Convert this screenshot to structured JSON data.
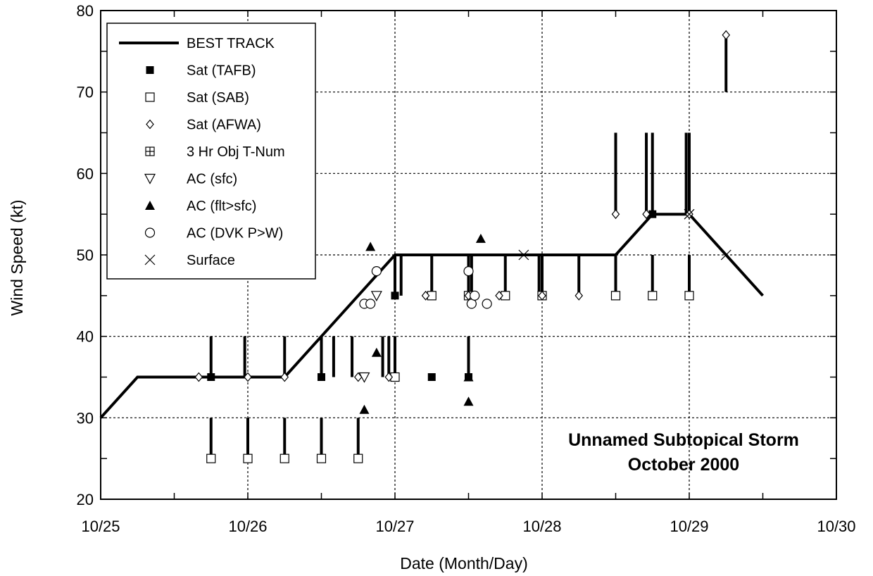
{
  "chart_data": {
    "type": "scatter",
    "xlabel": "Date (Month/Day)",
    "ylabel": "Wind Speed (kt)",
    "xlim": [
      "10/25 00:00",
      "10/30 00:00"
    ],
    "ylim": [
      20,
      80
    ],
    "x_ticks": [
      "10/25",
      "10/26",
      "10/27",
      "10/28",
      "10/29",
      "10/30"
    ],
    "y_ticks": [
      20,
      30,
      40,
      50,
      60,
      70,
      80
    ],
    "grid": true,
    "legend_position": "top-left",
    "annotation": [
      "Unnamed Subtopical Storm",
      "October 2000"
    ],
    "best_track": {
      "name": "BEST TRACK",
      "x": [
        "10/25 00:00",
        "10/25 06:00",
        "10/26 06:00",
        "10/26 12:00",
        "10/27 00:00",
        "10/28 12:00",
        "10/28 18:00",
        "10/29 00:00",
        "10/29 12:00"
      ],
      "y": [
        30,
        35,
        35,
        40,
        50,
        50,
        55,
        55,
        45
      ]
    },
    "error_bars": [
      {
        "x": "10/25 18:00",
        "y1": 35,
        "y2": 40
      },
      {
        "x": "10/25 18:00",
        "y1": 25,
        "y2": 30
      },
      {
        "x": "10/25 23:30",
        "y1": 35,
        "y2": 40
      },
      {
        "x": "10/26 00:00",
        "y1": 25,
        "y2": 30
      },
      {
        "x": "10/26 06:00",
        "y1": 35,
        "y2": 40
      },
      {
        "x": "10/26 06:00",
        "y1": 25,
        "y2": 30
      },
      {
        "x": "10/26 12:00",
        "y1": 35,
        "y2": 40
      },
      {
        "x": "10/26 12:00",
        "y1": 25,
        "y2": 30
      },
      {
        "x": "10/26 14:00",
        "y1": 35,
        "y2": 40
      },
      {
        "x": "10/26 17:00",
        "y1": 35,
        "y2": 40
      },
      {
        "x": "10/26 18:00",
        "y1": 25,
        "y2": 30
      },
      {
        "x": "10/26 22:00",
        "y1": 35,
        "y2": 40
      },
      {
        "x": "10/26 23:00",
        "y1": 35,
        "y2": 40
      },
      {
        "x": "10/27 00:00",
        "y1": 45,
        "y2": 50
      },
      {
        "x": "10/27 00:00",
        "y1": 35,
        "y2": 40
      },
      {
        "x": "10/27 01:00",
        "y1": 45,
        "y2": 50
      },
      {
        "x": "10/27 06:00",
        "y1": 45,
        "y2": 50
      },
      {
        "x": "10/27 12:00",
        "y1": 45,
        "y2": 50
      },
      {
        "x": "10/27 12:00",
        "y1": 35,
        "y2": 40
      },
      {
        "x": "10/27 12:30",
        "y1": 45,
        "y2": 50
      },
      {
        "x": "10/27 18:00",
        "y1": 45,
        "y2": 50
      },
      {
        "x": "10/27 23:30",
        "y1": 45,
        "y2": 50
      },
      {
        "x": "10/28 00:00",
        "y1": 45,
        "y2": 50
      },
      {
        "x": "10/28 06:00",
        "y1": 45,
        "y2": 50
      },
      {
        "x": "10/28 12:00",
        "y1": 55,
        "y2": 65
      },
      {
        "x": "10/28 12:00",
        "y1": 45,
        "y2": 50
      },
      {
        "x": "10/28 17:00",
        "y1": 55,
        "y2": 65
      },
      {
        "x": "10/28 18:00",
        "y1": 55,
        "y2": 65
      },
      {
        "x": "10/28 18:00",
        "y1": 45,
        "y2": 50
      },
      {
        "x": "10/28 23:30",
        "y1": 55,
        "y2": 65
      },
      {
        "x": "10/29 00:00",
        "y1": 55,
        "y2": 65
      },
      {
        "x": "10/29 00:00",
        "y1": 45,
        "y2": 50
      },
      {
        "x": "10/29 06:00",
        "y1": 70,
        "y2": 77
      }
    ],
    "series": [
      {
        "name": "Sat (TAFB)",
        "marker": "filled-square",
        "points": [
          {
            "x": "10/25 18:00",
            "y": 35
          },
          {
            "x": "10/26 12:00",
            "y": 35
          },
          {
            "x": "10/27 00:00",
            "y": 45
          },
          {
            "x": "10/27 06:00",
            "y": 35
          },
          {
            "x": "10/27 12:00",
            "y": 35
          },
          {
            "x": "10/27 18:00",
            "y": 45
          },
          {
            "x": "10/28 12:00",
            "y": 45
          },
          {
            "x": "10/28 18:00",
            "y": 55
          }
        ]
      },
      {
        "name": "Sat (SAB)",
        "marker": "open-square",
        "points": [
          {
            "x": "10/25 18:00",
            "y": 25
          },
          {
            "x": "10/26 00:00",
            "y": 25
          },
          {
            "x": "10/26 06:00",
            "y": 25
          },
          {
            "x": "10/26 12:00",
            "y": 25
          },
          {
            "x": "10/26 18:00",
            "y": 25
          },
          {
            "x": "10/27 00:00",
            "y": 35
          },
          {
            "x": "10/27 06:00",
            "y": 45
          },
          {
            "x": "10/27 12:00",
            "y": 45
          },
          {
            "x": "10/27 18:00",
            "y": 45
          },
          {
            "x": "10/28 00:00",
            "y": 45
          },
          {
            "x": "10/28 12:00",
            "y": 45
          },
          {
            "x": "10/28 18:00",
            "y": 45
          },
          {
            "x": "10/29 00:00",
            "y": 45
          }
        ]
      },
      {
        "name": "Sat (AFWA)",
        "marker": "open-diamond",
        "points": [
          {
            "x": "10/25 16:00",
            "y": 35
          },
          {
            "x": "10/26 00:00",
            "y": 35
          },
          {
            "x": "10/26 06:00",
            "y": 35
          },
          {
            "x": "10/26 18:00",
            "y": 35
          },
          {
            "x": "10/26 23:00",
            "y": 35
          },
          {
            "x": "10/27 05:00",
            "y": 45
          },
          {
            "x": "10/27 12:00",
            "y": 45
          },
          {
            "x": "10/27 17:00",
            "y": 45
          },
          {
            "x": "10/28 00:00",
            "y": 45
          },
          {
            "x": "10/28 06:00",
            "y": 45
          },
          {
            "x": "10/28 12:00",
            "y": 55
          },
          {
            "x": "10/28 17:00",
            "y": 55
          },
          {
            "x": "10/29 00:00",
            "y": 55
          },
          {
            "x": "10/29 06:00",
            "y": 77
          }
        ]
      },
      {
        "name": "3 Hr Obj T-Num",
        "marker": "crossed-square",
        "points": []
      },
      {
        "name": "AC (sfc)",
        "marker": "open-triangle-down",
        "points": [
          {
            "x": "10/26 21:00",
            "y": 45
          },
          {
            "x": "10/26 19:00",
            "y": 35
          }
        ]
      },
      {
        "name": "AC (flt>sfc)",
        "marker": "filled-triangle-up",
        "points": [
          {
            "x": "10/26 20:00",
            "y": 51
          },
          {
            "x": "10/26 21:00",
            "y": 38
          },
          {
            "x": "10/26 19:00",
            "y": 31
          },
          {
            "x": "10/27 14:00",
            "y": 52
          },
          {
            "x": "10/27 12:00",
            "y": 35
          },
          {
            "x": "10/27 12:00",
            "y": 32
          }
        ]
      },
      {
        "name": "AC (DVK P>W)",
        "marker": "open-circle",
        "points": [
          {
            "x": "10/26 21:00",
            "y": 48
          },
          {
            "x": "10/26 19:00",
            "y": 44
          },
          {
            "x": "10/26 20:00",
            "y": 44
          },
          {
            "x": "10/27 12:00",
            "y": 48
          },
          {
            "x": "10/27 12:30",
            "y": 44
          },
          {
            "x": "10/27 13:00",
            "y": 45
          },
          {
            "x": "10/27 15:00",
            "y": 44
          }
        ]
      },
      {
        "name": "Surface",
        "marker": "x-cross",
        "points": [
          {
            "x": "10/27 21:00",
            "y": 50
          },
          {
            "x": "10/29 00:00",
            "y": 55
          },
          {
            "x": "10/29 06:00",
            "y": 50
          }
        ]
      }
    ]
  }
}
